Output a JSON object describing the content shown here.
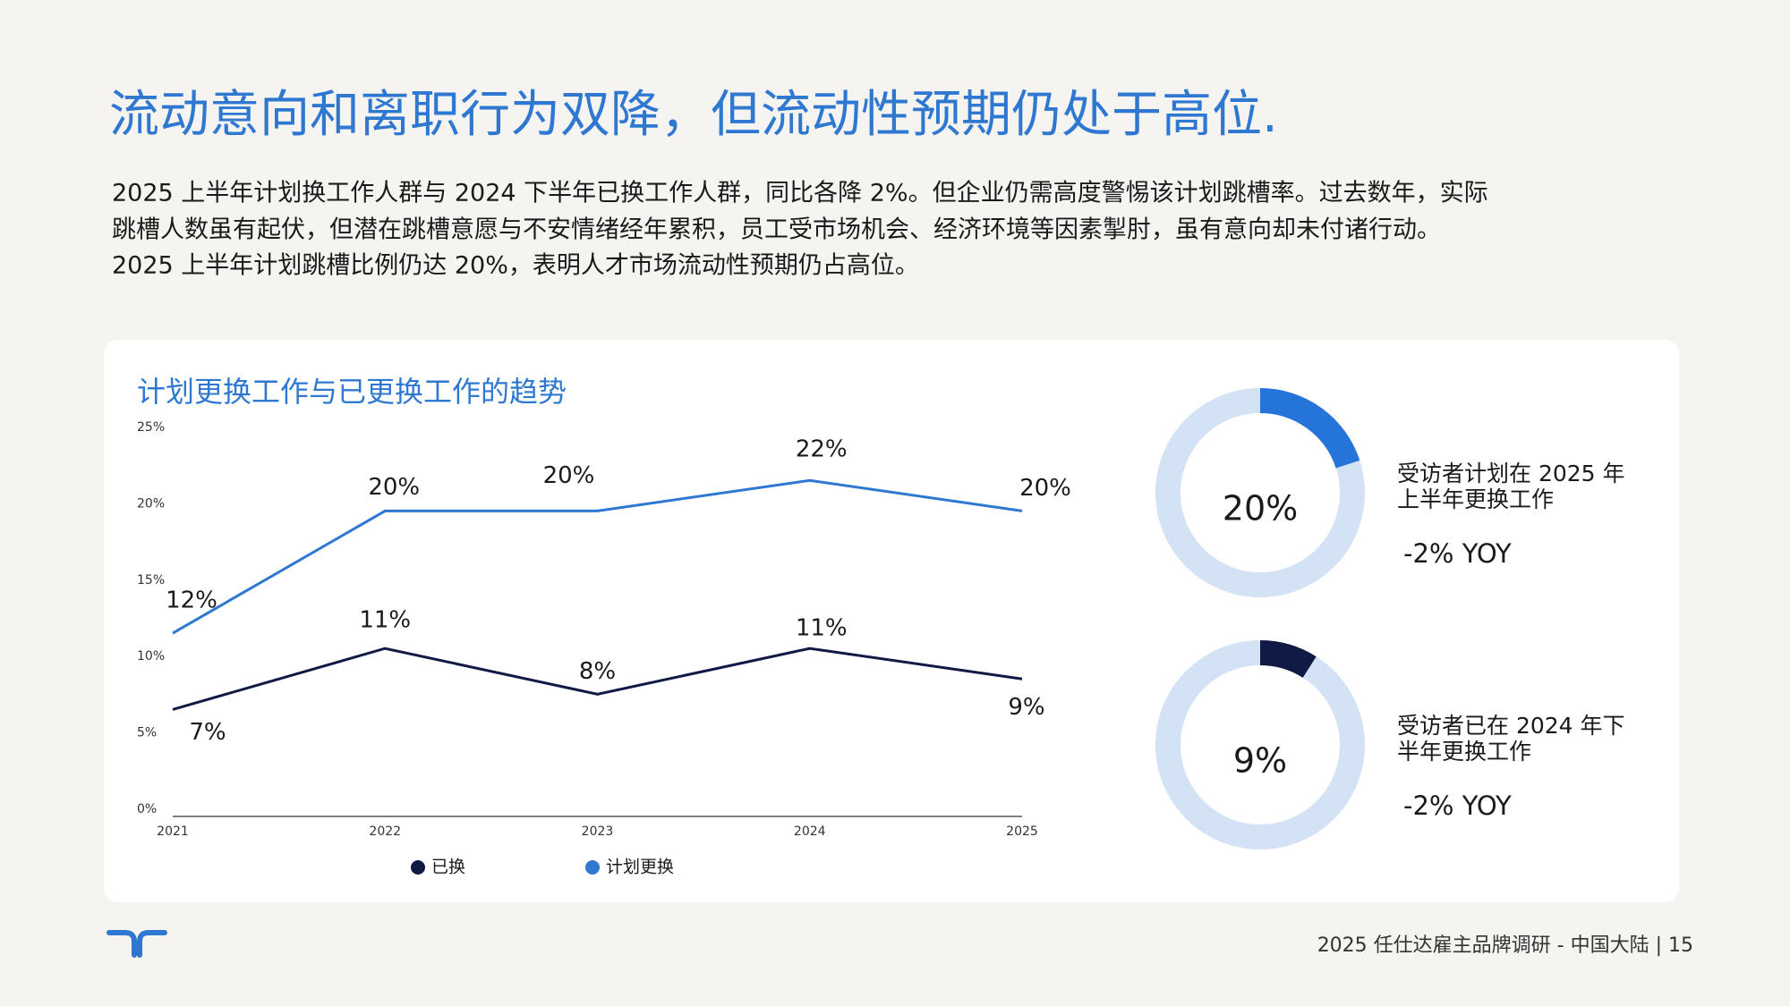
{
  "header": {
    "title": "流动意向和离职行为双降，但流动性预期仍处于高位."
  },
  "body": {
    "lines": [
      "2025 上半年计划换工作人群与 2024 下半年已换工作人群，同比各降 2%。但企业仍需高度警惕该计划跳槽率。过去数年，实际",
      "跳槽人数虽有起伏，但潜在跳槽意愿与不安情绪经年累积，员工受市场机会、经济环境等因素掣肘，虽有意向却未付诸行动。",
      "2025 上半年计划跳槽比例仍达 20%，表明人才市场流动性预期仍占高位。"
    ]
  },
  "chart_data": [
    {
      "type": "line",
      "title": "计划更换工作与已更换工作的趋势",
      "categories": [
        "2021",
        "2022",
        "2023",
        "2024",
        "2025"
      ],
      "series": [
        {
          "name": "已换",
          "color": "#111a44",
          "values": [
            7,
            11,
            8,
            11,
            9
          ],
          "value_labels": [
            "7%",
            "11%",
            "8%",
            "11%",
            "9%"
          ]
        },
        {
          "name": "计划更换",
          "color": "#2e78d2",
          "values": [
            12,
            20,
            20,
            22,
            20
          ],
          "value_labels": [
            "12%",
            "20%",
            "20%",
            "22%",
            "20%"
          ]
        }
      ],
      "ylim": [
        0,
        25
      ],
      "yticks": [
        {
          "value": 0,
          "label": "0%"
        },
        {
          "value": 5,
          "label": "5%"
        },
        {
          "value": 10,
          "label": "10%"
        },
        {
          "value": 15,
          "label": "15%"
        },
        {
          "value": 20,
          "label": "20%"
        },
        {
          "value": 25,
          "label": "25%"
        }
      ],
      "grid": false,
      "legend": "bottom"
    },
    {
      "type": "donut",
      "values": [
        20
      ],
      "value_labels": [
        "20%"
      ],
      "color": "#2574d9",
      "track_color": "#d4e2f5",
      "annotations": [
        "受访者计划在 2025 年",
        "上半年更换工作",
        "-2% YOY"
      ]
    },
    {
      "type": "donut",
      "values": [
        9
      ],
      "value_labels": [
        "9%"
      ],
      "color": "#111a44",
      "track_color": "#d4e2f5",
      "annotations": [
        "受访者已在 2024 年下",
        "半年更换工作",
        "-2% YOY"
      ]
    }
  ],
  "footer": {
    "text": "2025 任仕达雇主品牌调研 - 中国大陆 | 15"
  }
}
